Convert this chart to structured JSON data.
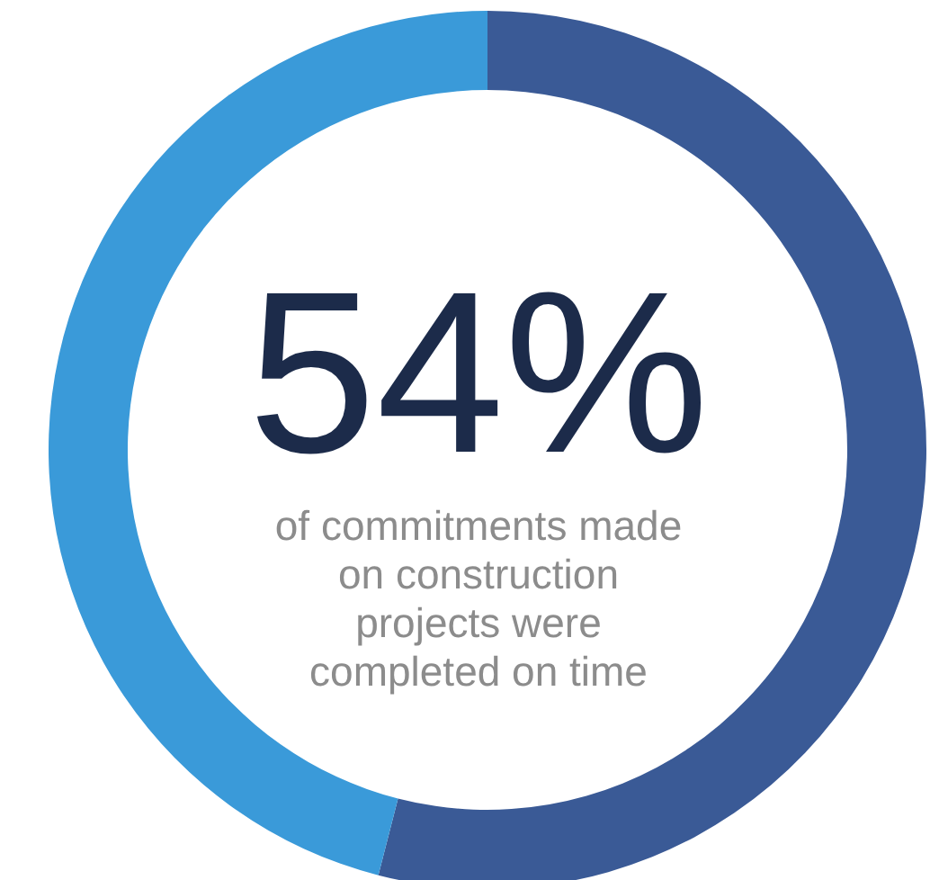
{
  "chart_data": {
    "type": "donut",
    "title": "54%",
    "subtitle": "of commitments made on construction projects were completed on time",
    "categories": [
      null,
      null
    ],
    "values": [
      54,
      46
    ],
    "colors": [
      "#3a5a96",
      "#3a9ad9"
    ],
    "legend": false
  }
}
